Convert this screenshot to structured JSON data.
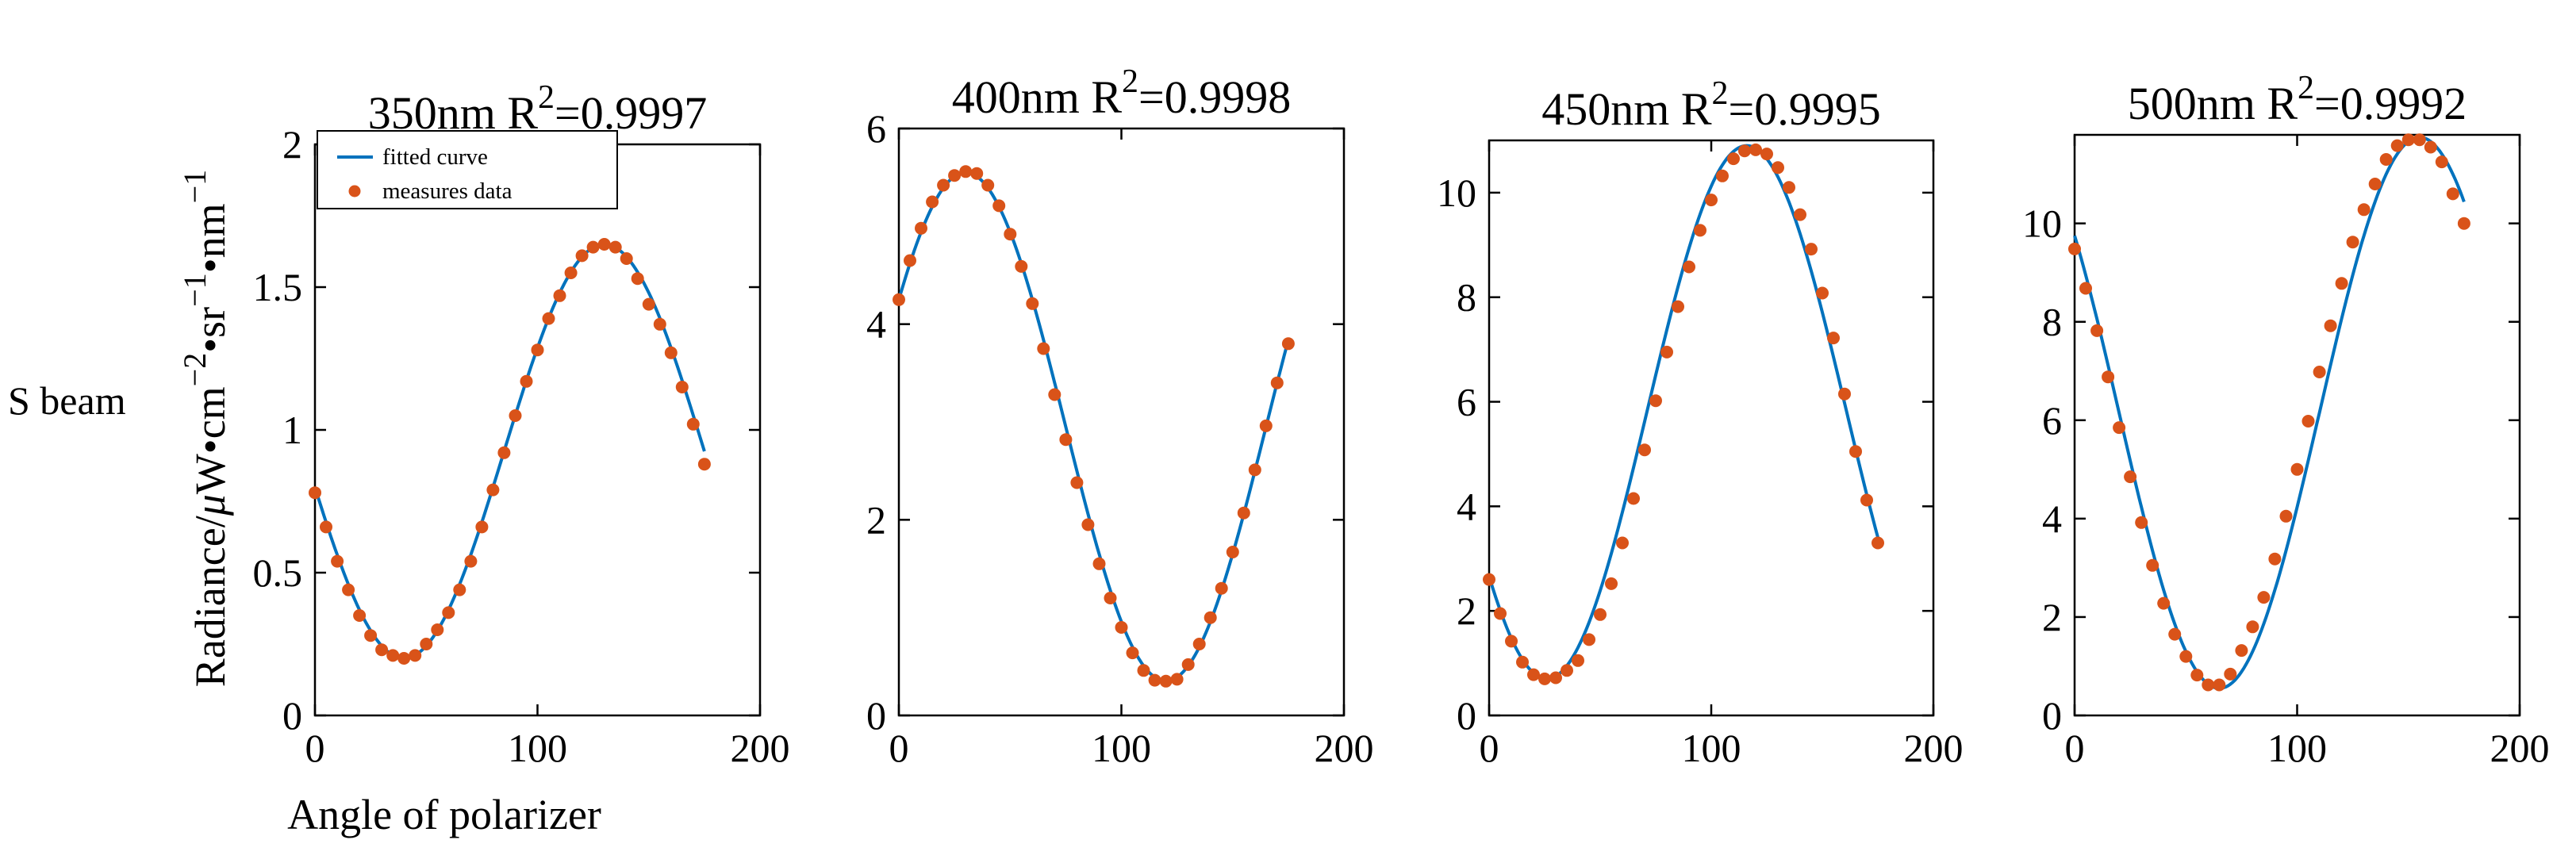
{
  "figure": {
    "left_label": "S beam",
    "ylabel_main": "Radiance/",
    "ylabel_mu": "μ",
    "ylabel_unit_a": "W•cm",
    "ylabel_exp_a": "−2",
    "ylabel_unit_b": "•sr",
    "ylabel_exp_b": "−1",
    "ylabel_unit_c": "•nm",
    "ylabel_exp_c": "−1",
    "xlabel": "Angle of polarizer"
  },
  "legend": {
    "curve_label": "fitted curve",
    "dots_label": "measures data"
  },
  "colors": {
    "curve": "#0072BD",
    "dots": "#D95319"
  },
  "chart_data": [
    {
      "type": "line",
      "title_prefix": "350nm R",
      "title_sup": "2",
      "title_suffix": "=0.9997",
      "xlim": [
        0,
        200
      ],
      "ylim": [
        0,
        2
      ],
      "xticks": [
        0,
        100,
        200
      ],
      "xtick_labels": [
        "0",
        "100",
        "200"
      ],
      "yticks": [
        0,
        0.5,
        1,
        1.5,
        2
      ],
      "ytick_labels": [
        "0",
        "0.5",
        "1",
        "1.5",
        "2"
      ],
      "fit": {
        "mean": 0.925,
        "amp": 0.725,
        "phase_deg": 130
      },
      "x": [
        0,
        5,
        10,
        15,
        20,
        25,
        30,
        35,
        40,
        45,
        50,
        55,
        60,
        65,
        70,
        75,
        80,
        85,
        90,
        95,
        100,
        105,
        110,
        115,
        120,
        125,
        130,
        135,
        140,
        145,
        150,
        155,
        160,
        165,
        170,
        175
      ],
      "y": [
        0.78,
        0.66,
        0.54,
        0.44,
        0.35,
        0.28,
        0.23,
        0.21,
        0.2,
        0.21,
        0.25,
        0.3,
        0.36,
        0.44,
        0.54,
        0.66,
        0.79,
        0.92,
        1.05,
        1.17,
        1.28,
        1.39,
        1.47,
        1.55,
        1.61,
        1.64,
        1.65,
        1.64,
        1.6,
        1.53,
        1.44,
        1.37,
        1.27,
        1.15,
        1.02,
        0.88
      ]
    },
    {
      "type": "line",
      "title_prefix": "400nm R",
      "title_sup": "2",
      "title_suffix": "=0.9998",
      "xlim": [
        0,
        200
      ],
      "ylim": [
        0,
        6
      ],
      "xticks": [
        0,
        100,
        200
      ],
      "xtick_labels": [
        "0",
        "100",
        "200"
      ],
      "yticks": [
        0,
        2,
        4,
        6
      ],
      "ytick_labels": [
        "0",
        "2",
        "4",
        "6"
      ],
      "fit": {
        "mean": 2.95,
        "amp": 2.6,
        "phase_deg": 30
      },
      "x": [
        0,
        5,
        10,
        15,
        20,
        25,
        30,
        35,
        40,
        45,
        50,
        55,
        60,
        65,
        70,
        75,
        80,
        85,
        90,
        95,
        100,
        105,
        110,
        115,
        120,
        125,
        130,
        135,
        140,
        145,
        150,
        155,
        160,
        165,
        170,
        175
      ],
      "y": [
        4.25,
        4.65,
        4.98,
        5.25,
        5.42,
        5.52,
        5.56,
        5.54,
        5.42,
        5.21,
        4.92,
        4.59,
        4.21,
        3.75,
        3.28,
        2.82,
        2.38,
        1.95,
        1.55,
        1.2,
        0.9,
        0.64,
        0.46,
        0.36,
        0.35,
        0.37,
        0.52,
        0.73,
        1.0,
        1.3,
        1.67,
        2.07,
        2.51,
        2.96,
        3.4,
        3.8
      ]
    },
    {
      "type": "line",
      "title_prefix": "450nm R",
      "title_sup": "2",
      "title_suffix": "=0.9995",
      "xlim": [
        0,
        200
      ],
      "ylim": [
        0,
        11
      ],
      "xticks": [
        0,
        100,
        200
      ],
      "xtick_labels": [
        "0",
        "100",
        "200"
      ],
      "yticks": [
        0,
        2,
        4,
        6,
        8,
        10
      ],
      "ytick_labels": [
        "0",
        "2",
        "4",
        "6",
        "8",
        "10"
      ],
      "fit": {
        "mean": 5.8,
        "amp": 5.1,
        "phase_deg": 116
      },
      "x": [
        0,
        5,
        10,
        15,
        20,
        25,
        30,
        35,
        40,
        45,
        50,
        55,
        60,
        65,
        70,
        75,
        80,
        85,
        90,
        95,
        100,
        105,
        110,
        115,
        120,
        125,
        130,
        135,
        140,
        145,
        150,
        155,
        160,
        165,
        170,
        175
      ],
      "y": [
        2.6,
        1.95,
        1.42,
        1.02,
        0.78,
        0.7,
        0.72,
        0.86,
        1.05,
        1.45,
        1.93,
        2.52,
        3.3,
        4.15,
        5.08,
        6.02,
        6.95,
        7.82,
        8.58,
        9.28,
        9.86,
        10.32,
        10.65,
        10.8,
        10.82,
        10.74,
        10.48,
        10.1,
        9.58,
        8.92,
        8.08,
        7.22,
        6.15,
        5.05,
        4.12,
        3.3
      ]
    },
    {
      "type": "line",
      "title_prefix": "500nm R",
      "title_sup": "2",
      "title_suffix": "=0.9992",
      "xlim": [
        0,
        200
      ],
      "ylim": [
        0,
        11.8
      ],
      "xticks": [
        0,
        100,
        200
      ],
      "xtick_labels": [
        "0",
        "100",
        "200"
      ],
      "yticks": [
        0,
        2,
        4,
        6,
        8,
        10
      ],
      "ytick_labels": [
        "0",
        "2",
        "4",
        "6",
        "8",
        "10"
      ],
      "fit": {
        "mean": 6.15,
        "amp": 5.6,
        "phase_deg": 155
      },
      "x": [
        0,
        5,
        10,
        15,
        20,
        25,
        30,
        35,
        40,
        45,
        50,
        55,
        60,
        65,
        70,
        75,
        80,
        85,
        90,
        95,
        100,
        105,
        110,
        115,
        120,
        125,
        130,
        135,
        140,
        145,
        150,
        155,
        160,
        165,
        170,
        175
      ],
      "y": [
        9.48,
        8.68,
        7.82,
        6.88,
        5.85,
        4.85,
        3.92,
        3.05,
        2.28,
        1.65,
        1.2,
        0.82,
        0.62,
        0.62,
        0.84,
        1.32,
        1.8,
        2.4,
        3.18,
        4.05,
        5.0,
        5.98,
        6.98,
        7.92,
        8.78,
        9.62,
        10.28,
        10.8,
        11.3,
        11.58,
        11.7,
        11.7,
        11.55,
        11.25,
        10.6,
        10.0
      ]
    }
  ]
}
